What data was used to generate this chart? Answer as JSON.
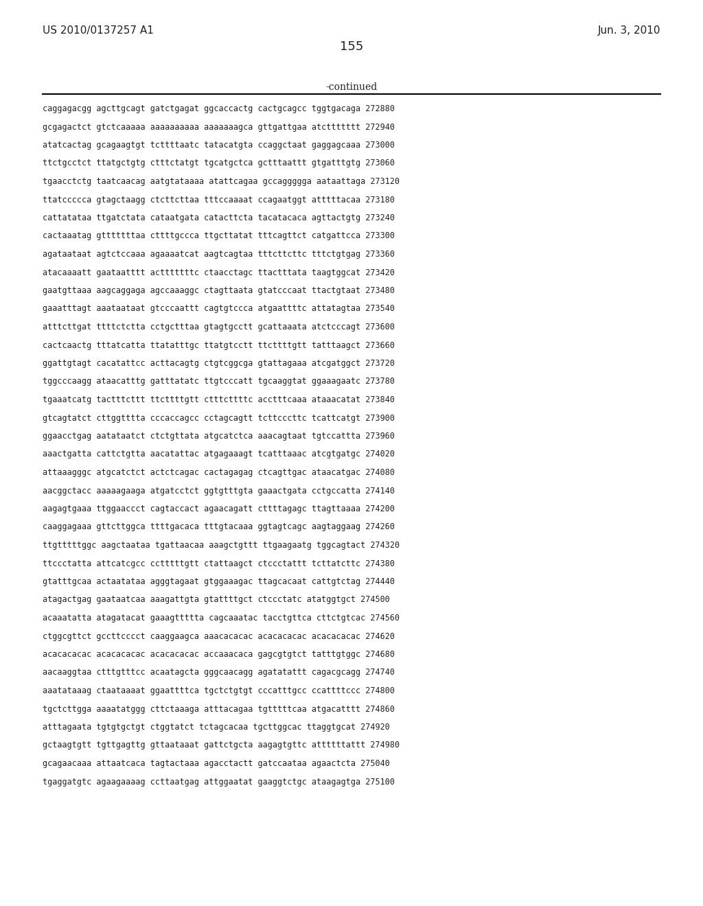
{
  "header_left": "US 2010/0137257 A1",
  "header_right": "Jun. 3, 2010",
  "page_number": "155",
  "continued_label": "-continued",
  "background_color": "#ffffff",
  "text_color": "#231f20",
  "sequence_lines": [
    "caggagacgg agcttgcagt gatctgagat ggcaccactg cactgcagcc tggtgacaga 272880",
    "gcgagactct gtctcaaaaa aaaaaaaaaa aaaaaaagca gttgattgaa atcttttttt 272940",
    "atatcactag gcagaagtgt tcttttaatc tatacatgta ccaggctaat gaggagcaaa 273000",
    "ttctgcctct ttatgctgtg ctttctatgt tgcatgctca gctttaattt gtgatttgtg 273060",
    "tgaacctctg taatcaacag aatgtataaaa atattcagaa gccaggggga aataattaga 273120",
    "ttatccccca gtagctaagg ctcttcttaa tttccaaaat ccagaatggt atttttacaa 273180",
    "cattatataa ttgatctata cataatgata catacttcta tacatacaca agttactgtg 273240",
    "cactaaatag gtttttttaa cttttgccca ttgcttatat tttcagttct catgattcca 273300",
    "agataataat agtctccaaa agaaaatcat aagtcagtaa tttcttcttc tttctgtgag 273360",
    "atacaaaatt gaataatttt actttttttc ctaacctagc ttactttata taagtggcat 273420",
    "gaatgttaaa aagcaggaga agccaaaggc ctagttaata gtatcccaat ttactgtaat 273480",
    "gaaatttagt aaataataat gtcccaattt cagtgtccca atgaattttc attatagtaa 273540",
    "atttcttgat ttttctctta cctgctttaa gtagtgcctt gcattaaata atctcccagt 273600",
    "cactcaactg tttatcatta ttatatttgc ttatgtcctt ttcttttgtt tatttaagct 273660",
    "ggattgtagt cacatattcc acttacagtg ctgtcggcga gtattagaaa atcgatggct 273720",
    "tggcccaagg ataacatttg gatttatatc ttgtcccatt tgcaaggtat ggaaagaatc 273780",
    "tgaaatcatg tactttcttt ttcttttgtt ctttcttttc acctttcaaa ataaacatat 273840",
    "gtcagtatct cttggtttta cccaccagcc cctagcagtt tcttcccttc tcattcatgt 273900",
    "ggaacctgag aatataatct ctctgttata atgcatctca aaacagtaat tgtccattta 273960",
    "aaactgatta cattctgtta aacatattac atgagaaagt tcatttaaac atcgtgatgc 274020",
    "attaaagggc atgcatctct actctcagac cactagagag ctcagttgac ataacatgac 274080",
    "aacggctacc aaaaagaaga atgatcctct ggtgtttgta gaaactgata cctgccatta 274140",
    "aagagtgaaa ttggaaccct cagtaccact agaacagatt cttttagagc ttagttaaaa 274200",
    "caaggagaaa gttcttggca ttttgacaca tttgtacaaa ggtagtcagc aagtaggaag 274260",
    "ttgtttttggc aagctaataa tgattaacaa aaagctgttt ttgaagaatg tggcagtact 274320",
    "ttccctatta attcatcgcc cctttttgtt ctattaagct ctccctattt tcttatcttc 274380",
    "gtatttgcaa actaatataa agggtagaat gtggaaagac ttagcacaat cattgtctag 274440",
    "atagactgag gaataatcaa aaagattgta gtattttgct ctccctatc atatggtgct 274500",
    "acaaatatta atagatacat gaaagttttta cagcaaatac tacctgttca cttctgtcac 274560",
    "ctggcgttct gccttcccct caaggaagca aaacacacac acacacacac acacacacac 274620",
    "acacacacac acacacacac acacacacac accaaacaca gagcgtgtct tatttgtggc 274680",
    "aacaaggtaa ctttgtttcc acaatagcta gggcaacagg agatatattt cagacgcagg 274740",
    "aaatataaag ctaataaaat ggaattttca tgctctgtgt cccatttgcc ccattttccc 274800",
    "tgctcttgga aaaatatggg cttctaaaga atttacagaa tgtttttcaa atgacatttt 274860",
    "atttagaata tgtgtgctgt ctggtatct tctagcacaa tgcttggcac ttaggtgcat 274920",
    "gctaagtgtt tgttgagttg gttaataaat gattctgcta aagagtgttc attttttattt 274980",
    "gcagaacaaa attaatcaca tagtactaaa agacctactt gatccaataa agaactcta 275040",
    "tgaggatgtc agaagaaaag ccttaatgag attggaatat gaaggtctgc ataagagtga 275100"
  ],
  "header_fontsize": 11,
  "page_num_fontsize": 13,
  "continued_fontsize": 10,
  "seq_fontsize": 8.5
}
